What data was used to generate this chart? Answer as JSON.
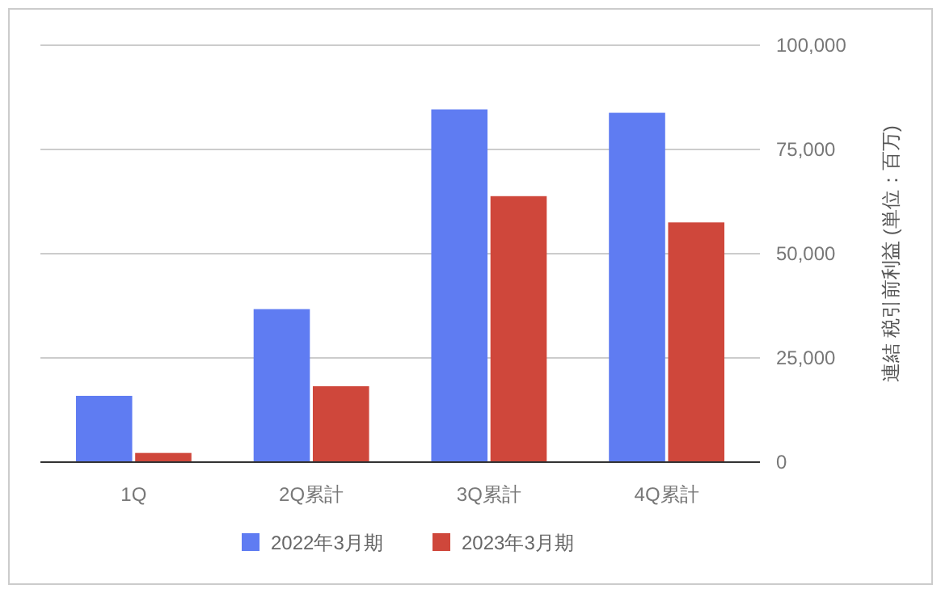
{
  "chart_data": {
    "type": "bar",
    "ylabel": "連結 税引前利益 (単位：百万)",
    "categories": [
      "1Q",
      "2Q累計",
      "3Q累計",
      "4Q累計"
    ],
    "series": [
      {
        "name": "2022年3月期",
        "color": "#5f7cf2",
        "values": [
          15900,
          36700,
          84600,
          83800
        ]
      },
      {
        "name": "2023年3月期",
        "color": "#cf473b",
        "values": [
          2200,
          18200,
          63800,
          57500
        ]
      }
    ],
    "ylim": [
      0,
      100000
    ],
    "yticks": [
      {
        "value": 0,
        "label": "0"
      },
      {
        "value": 25000,
        "label": "25,000"
      },
      {
        "value": 50000,
        "label": "50,000"
      },
      {
        "value": 75000,
        "label": "75,000"
      },
      {
        "value": 100000,
        "label": "100,000"
      }
    ],
    "grid": true,
    "legend": "bottom"
  }
}
